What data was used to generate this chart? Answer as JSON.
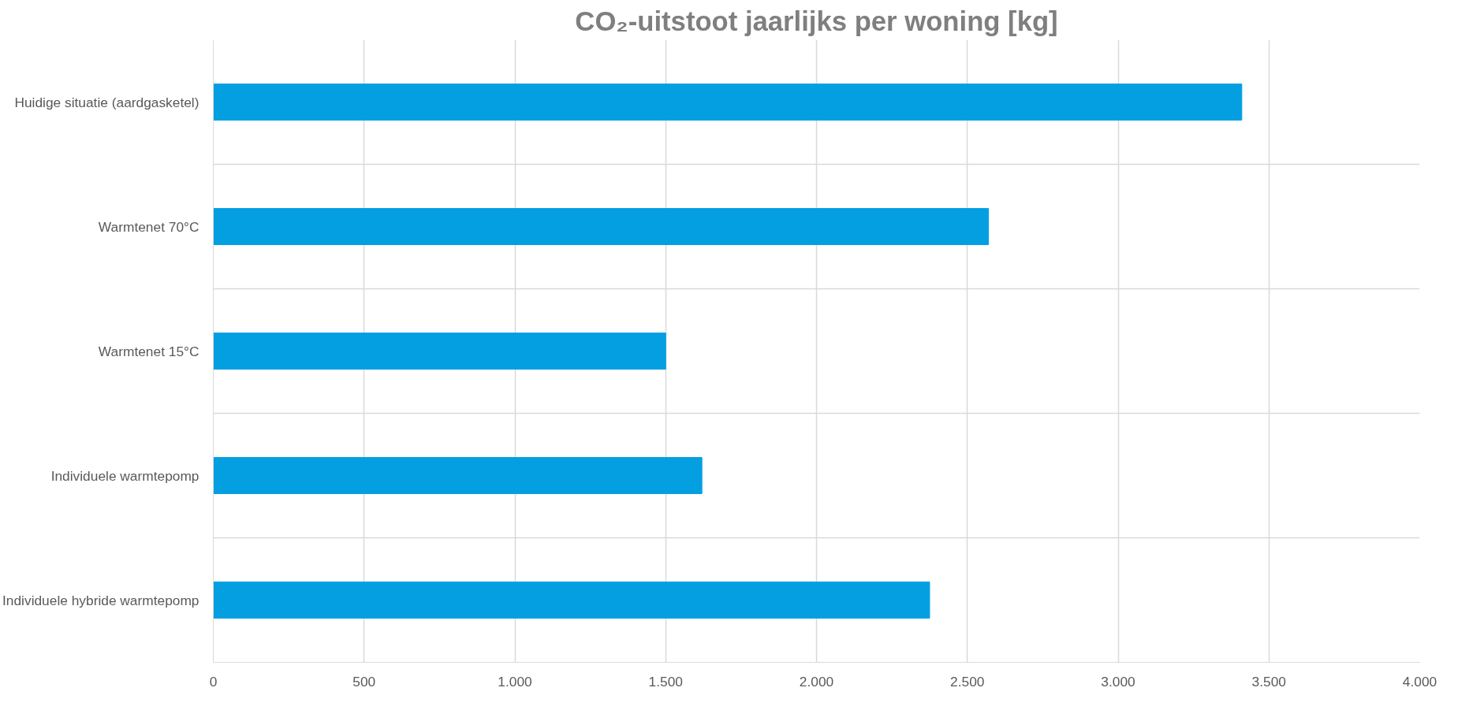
{
  "chart_data": {
    "type": "bar",
    "orientation": "horizontal",
    "title": "CO₂-uitstoot jaarlijks per woning [kg]",
    "categories": [
      "Huidige situatie (aardgasketel)",
      "Warmtenet 70°C",
      "Warmtenet 15°C",
      "Individuele warmtepomp",
      "Individuele hybride warmtepomp"
    ],
    "series": [
      {
        "color": "#039fe1",
        "values": [
          3410,
          2570,
          1500,
          1620,
          2375
        ]
      }
    ],
    "xlim": [
      0,
      4000
    ],
    "xticks": [
      0,
      {
        "value": 500,
        "label": "500"
      },
      {
        "value": 1000,
        "label": "1.000"
      },
      {
        "value": 1500,
        "label": "1.500"
      },
      {
        "value": 2000,
        "label": "2.000"
      },
      {
        "value": 2500,
        "label": "2.500"
      },
      {
        "value": 3000,
        "label": "3.000"
      },
      {
        "value": 3500,
        "label": "3.500"
      },
      {
        "value": 4000,
        "label": "4.000"
      }
    ],
    "grid": true
  }
}
